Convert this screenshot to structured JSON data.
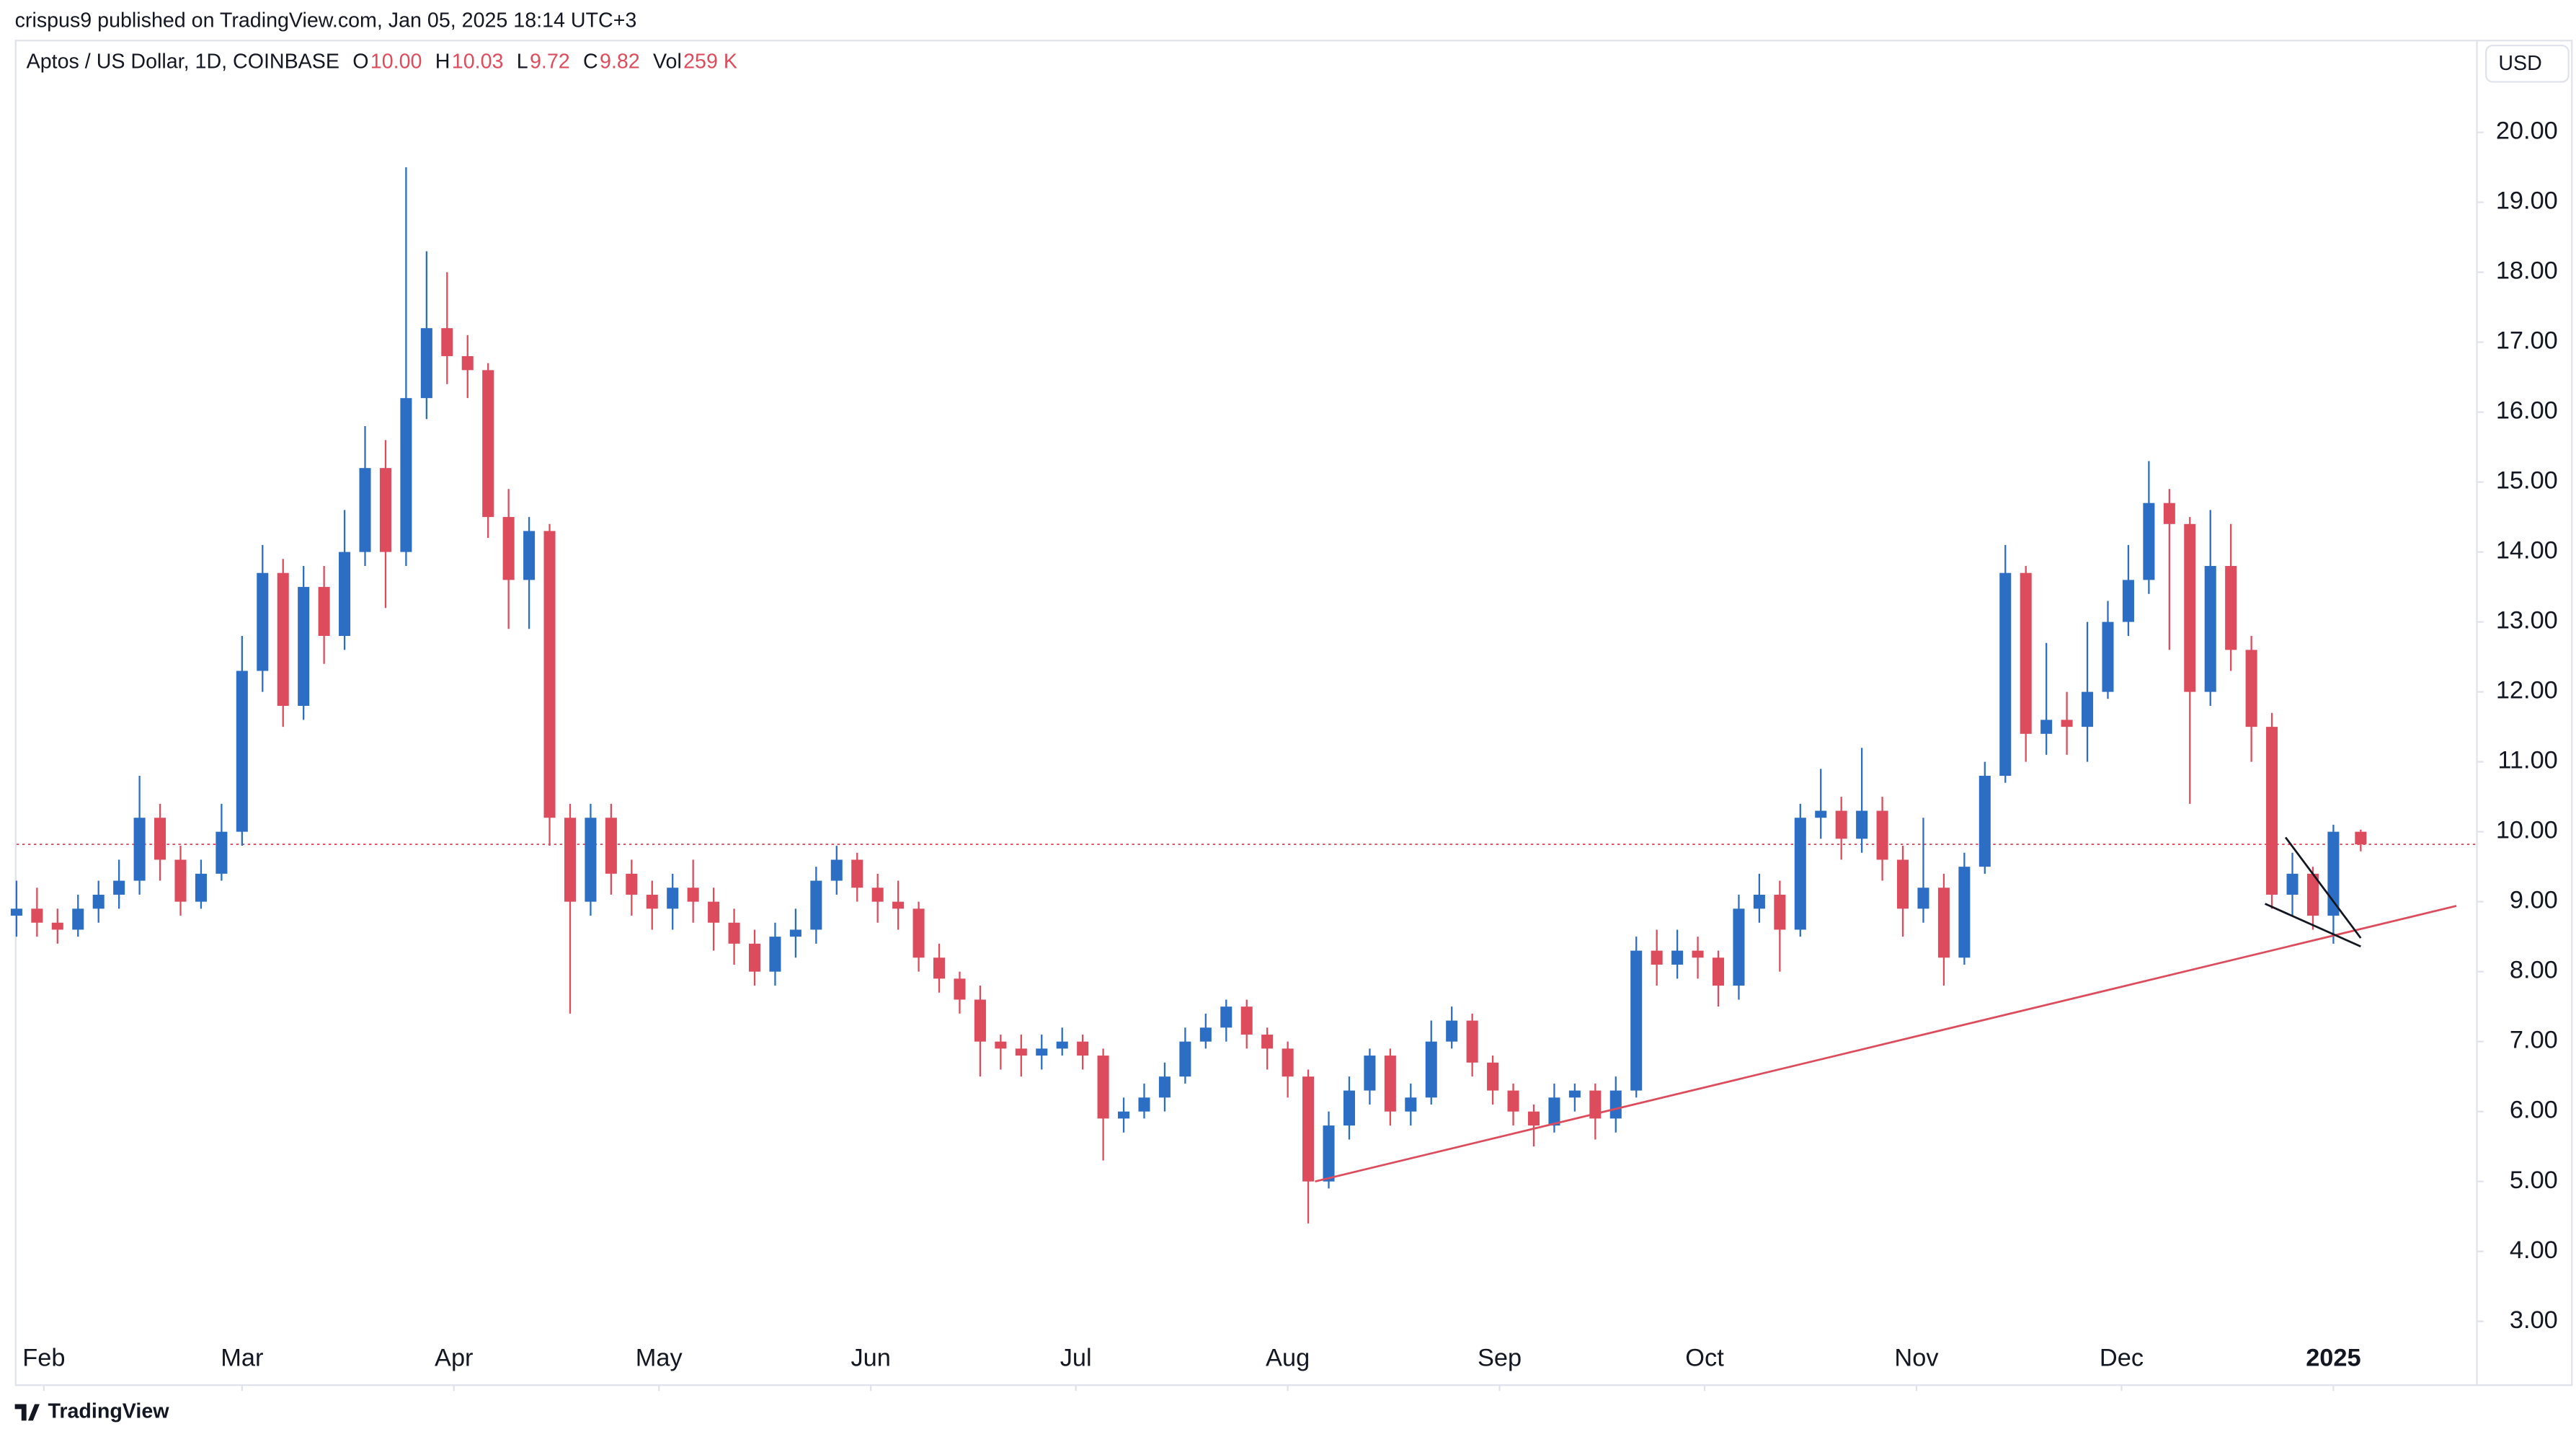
{
  "header": {
    "attribution": "crispus9 published on TradingView.com, Jan 05, 2025 18:14 UTC+3",
    "ohlc": [
      {
        "label": "O",
        "value": "10.00"
      },
      {
        "label": "H",
        "value": "10.03"
      },
      {
        "label": "L",
        "value": "9.72"
      },
      {
        "label": "C",
        "value": "9.82"
      },
      {
        "label": "Vol",
        "value": "259 K"
      }
    ],
    "currency": "USD"
  },
  "footer": "TradingView",
  "chart_data": {
    "type": "candlestick",
    "title": "Aptos / US Dollar, 1D, COINBASE",
    "up_color": "#2c6ec4",
    "down_color": "#dd4c5c",
    "x": [
      28,
      31,
      34,
      37,
      40,
      43,
      46,
      49,
      52,
      55,
      58,
      61,
      64,
      67,
      70,
      73,
      76,
      79,
      82,
      85,
      88,
      91,
      94,
      97,
      100,
      103,
      106,
      109,
      112,
      115,
      118,
      121,
      124,
      127,
      130,
      133,
      136,
      139,
      142,
      145,
      148,
      151,
      154,
      157,
      160,
      163,
      166,
      169,
      172,
      175,
      178,
      181,
      184,
      187,
      190,
      193,
      196,
      199,
      202,
      205,
      208,
      211,
      214,
      217,
      220,
      223,
      226,
      229,
      232,
      235,
      238,
      241,
      244,
      247,
      250,
      253,
      256,
      259,
      262,
      265,
      268,
      271,
      274,
      277,
      280,
      283,
      286,
      289,
      292,
      295,
      298,
      301,
      304,
      307,
      310,
      313,
      316,
      319,
      322,
      325,
      328,
      331,
      334,
      337,
      340,
      343,
      346,
      349,
      352,
      355,
      358,
      361,
      364,
      367,
      371
    ],
    "open": [
      8.8,
      8.9,
      8.7,
      8.6,
      8.9,
      9.1,
      9.3,
      10.2,
      9.6,
      9.0,
      9.4,
      10.0,
      12.3,
      13.7,
      11.8,
      13.5,
      12.8,
      14.0,
      15.2,
      14.0,
      16.2,
      17.2,
      16.8,
      16.6,
      14.5,
      13.6,
      14.3,
      10.2,
      9.0,
      10.2,
      9.4,
      9.1,
      8.9,
      9.2,
      9.0,
      8.7,
      8.4,
      8.0,
      8.5,
      8.6,
      9.3,
      9.6,
      9.2,
      9.0,
      8.9,
      8.2,
      7.9,
      7.6,
      7.0,
      6.9,
      6.8,
      6.9,
      7.0,
      6.8,
      5.9,
      6.0,
      6.2,
      6.5,
      7.0,
      7.2,
      7.5,
      7.1,
      6.9,
      6.5,
      5.0,
      5.8,
      6.3,
      6.8,
      6.0,
      6.2,
      7.0,
      7.3,
      6.7,
      6.3,
      6.0,
      5.8,
      6.2,
      6.3,
      5.9,
      6.3,
      8.3,
      8.1,
      8.3,
      8.2,
      7.8,
      8.9,
      9.1,
      8.6,
      10.2,
      10.3,
      9.9,
      10.3,
      9.6,
      8.9,
      9.2,
      8.2,
      9.5,
      10.8,
      13.7,
      11.4,
      11.6,
      11.5,
      12.0,
      13.0,
      13.6,
      14.7,
      14.4,
      12.0,
      13.8,
      12.6,
      11.5,
      9.1,
      9.4,
      8.8,
      10.0
    ],
    "high": [
      9.3,
      9.2,
      8.9,
      9.1,
      9.3,
      9.6,
      10.8,
      10.4,
      9.8,
      9.6,
      10.4,
      12.8,
      14.1,
      13.9,
      13.8,
      13.8,
      14.6,
      15.8,
      15.6,
      19.5,
      18.3,
      18.0,
      17.1,
      16.7,
      14.9,
      14.5,
      14.4,
      10.4,
      10.4,
      10.4,
      9.6,
      9.3,
      9.4,
      9.6,
      9.2,
      8.9,
      8.6,
      8.7,
      8.9,
      9.5,
      9.8,
      9.7,
      9.4,
      9.3,
      9.0,
      8.4,
      8.0,
      7.8,
      7.1,
      7.1,
      7.1,
      7.2,
      7.1,
      6.9,
      6.2,
      6.4,
      6.7,
      7.2,
      7.4,
      7.6,
      7.6,
      7.2,
      7.0,
      6.6,
      6.0,
      6.5,
      6.9,
      6.9,
      6.4,
      7.3,
      7.5,
      7.4,
      6.8,
      6.4,
      6.1,
      6.4,
      6.4,
      6.4,
      6.5,
      8.5,
      8.6,
      8.6,
      8.5,
      8.3,
      9.1,
      9.4,
      9.3,
      10.4,
      10.9,
      10.5,
      11.2,
      10.5,
      9.8,
      10.2,
      9.4,
      9.7,
      11.0,
      14.1,
      13.8,
      12.7,
      12.0,
      13.0,
      13.3,
      14.1,
      15.3,
      14.9,
      14.5,
      14.6,
      14.4,
      12.8,
      11.7,
      9.7,
      9.5,
      10.1,
      10.03
    ],
    "low": [
      8.5,
      8.5,
      8.4,
      8.5,
      8.7,
      8.9,
      9.1,
      9.3,
      8.8,
      8.9,
      9.3,
      9.8,
      12.0,
      11.5,
      11.6,
      12.4,
      12.6,
      13.8,
      13.2,
      13.8,
      15.9,
      16.4,
      16.2,
      14.2,
      12.9,
      12.9,
      9.8,
      7.4,
      8.8,
      9.1,
      8.8,
      8.6,
      8.6,
      8.7,
      8.3,
      8.1,
      7.8,
      7.8,
      8.2,
      8.4,
      9.1,
      9.0,
      8.7,
      8.6,
      8.0,
      7.7,
      7.4,
      6.5,
      6.6,
      6.5,
      6.6,
      6.8,
      6.6,
      5.3,
      5.7,
      5.9,
      6.0,
      6.4,
      6.9,
      7.0,
      6.9,
      6.6,
      6.2,
      4.4,
      4.9,
      5.6,
      6.1,
      5.8,
      5.8,
      6.1,
      6.9,
      6.5,
      6.1,
      5.8,
      5.5,
      5.7,
      6.0,
      5.6,
      5.7,
      6.2,
      7.8,
      7.9,
      7.9,
      7.5,
      7.6,
      8.7,
      8.0,
      8.5,
      9.9,
      9.6,
      9.7,
      9.3,
      8.5,
      8.7,
      7.8,
      8.1,
      9.4,
      10.7,
      11.0,
      11.1,
      11.1,
      11.0,
      11.9,
      12.8,
      13.4,
      12.6,
      10.4,
      11.8,
      12.3,
      11.0,
      8.9,
      8.8,
      8.6,
      8.4,
      9.72
    ],
    "close": [
      8.9,
      8.7,
      8.6,
      8.9,
      9.1,
      9.3,
      10.2,
      9.6,
      9.0,
      9.4,
      10.0,
      12.3,
      13.7,
      11.8,
      13.5,
      12.8,
      14.0,
      15.2,
      14.0,
      16.2,
      17.2,
      16.8,
      16.6,
      14.5,
      13.6,
      14.3,
      10.2,
      9.0,
      10.2,
      9.4,
      9.1,
      8.9,
      9.2,
      9.0,
      8.7,
      8.4,
      8.0,
      8.5,
      8.6,
      9.3,
      9.6,
      9.2,
      9.0,
      8.9,
      8.2,
      7.9,
      7.6,
      7.0,
      6.9,
      6.8,
      6.9,
      7.0,
      6.8,
      5.9,
      6.0,
      6.2,
      6.5,
      7.0,
      7.2,
      7.5,
      7.1,
      6.9,
      6.5,
      5.0,
      5.8,
      6.3,
      6.8,
      6.0,
      6.2,
      7.0,
      7.3,
      6.7,
      6.3,
      6.0,
      5.8,
      6.2,
      6.3,
      5.9,
      6.3,
      8.3,
      8.1,
      8.3,
      8.2,
      7.8,
      8.9,
      9.1,
      8.6,
      10.2,
      10.3,
      9.9,
      10.3,
      9.6,
      8.9,
      9.2,
      8.2,
      9.5,
      10.8,
      13.7,
      11.4,
      11.6,
      11.5,
      12.0,
      13.0,
      13.6,
      14.7,
      14.4,
      12.0,
      13.8,
      12.6,
      11.5,
      9.1,
      9.4,
      8.8,
      10.0,
      9.82
    ],
    "xlim": [
      28,
      388
    ],
    "ylim": [
      2.1,
      21.3
    ],
    "xticks": [
      {
        "value": 32,
        "label": "Feb"
      },
      {
        "value": 61,
        "label": "Mar"
      },
      {
        "value": 92,
        "label": "Apr"
      },
      {
        "value": 122,
        "label": "May"
      },
      {
        "value": 153,
        "label": "Jun"
      },
      {
        "value": 183,
        "label": "Jul"
      },
      {
        "value": 214,
        "label": "Aug"
      },
      {
        "value": 245,
        "label": "Sep"
      },
      {
        "value": 275,
        "label": "Oct"
      },
      {
        "value": 306,
        "label": "Nov"
      },
      {
        "value": 336,
        "label": "Dec"
      },
      {
        "value": 367,
        "label": "2025"
      }
    ],
    "yticks": [
      {
        "value": 3,
        "label": "3.00"
      },
      {
        "value": 4,
        "label": "4.00"
      },
      {
        "value": 5,
        "label": "5.00"
      },
      {
        "value": 6,
        "label": "6.00"
      },
      {
        "value": 7,
        "label": "7.00"
      },
      {
        "value": 8,
        "label": "8.00"
      },
      {
        "value": 9,
        "label": "9.00"
      },
      {
        "value": 10,
        "label": "10.00"
      },
      {
        "value": 11,
        "label": "11.00"
      },
      {
        "value": 12,
        "label": "12.00"
      },
      {
        "value": 13,
        "label": "13.00"
      },
      {
        "value": 14,
        "label": "14.00"
      },
      {
        "value": 15,
        "label": "15.00"
      },
      {
        "value": 16,
        "label": "16.00"
      },
      {
        "value": 17,
        "label": "17.00"
      },
      {
        "value": 18,
        "label": "18.00"
      },
      {
        "value": 19,
        "label": "19.00"
      },
      {
        "value": 20,
        "label": "20.00"
      }
    ],
    "annotations": [
      {
        "color": "#dd4c5c",
        "x": [
          218,
          385
        ],
        "y": [
          5.0,
          8.94
        ]
      },
      {
        "color": "#131722",
        "x": [
          360,
          371
        ],
        "y": [
          9.92,
          8.48
        ]
      },
      {
        "color": "#131722",
        "x": [
          357,
          371
        ],
        "y": [
          8.97,
          8.36
        ]
      }
    ]
  }
}
